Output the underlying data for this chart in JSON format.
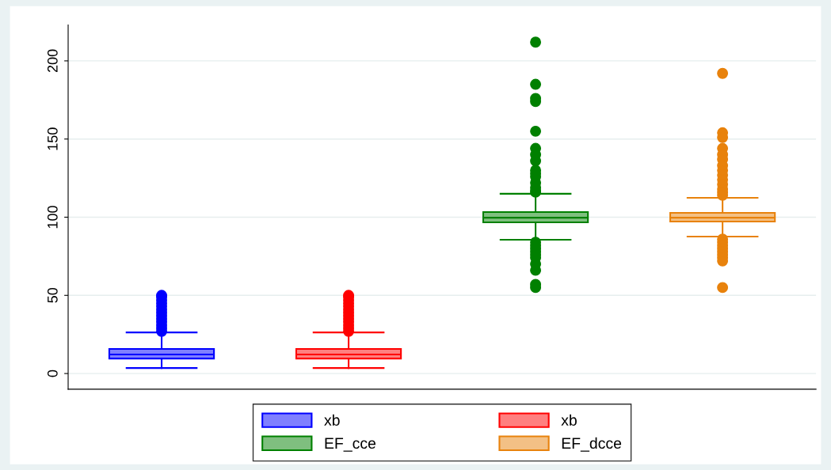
{
  "chart_data": {
    "type": "box",
    "categories": [
      null,
      null,
      null,
      null
    ],
    "series": [
      {
        "name": "xb",
        "color": "#0000ff",
        "boxes": [
          {
            "low": 3.5,
            "q1": 9.6,
            "median": 12.2,
            "q3": 15.7,
            "high": 26.3,
            "outliers": [
              27,
              29,
              31,
              33,
              35,
              37,
              39,
              41,
              43,
              45,
              47,
              49,
              50
            ]
          },
          null,
          null,
          null
        ]
      },
      {
        "name": "xb",
        "color": "#ff0000",
        "boxes": [
          null,
          {
            "low": 3.5,
            "q1": 9.6,
            "median": 12.2,
            "q3": 15.7,
            "high": 26.3,
            "outliers": [
              27,
              29,
              31,
              33,
              35,
              37,
              39,
              41,
              43,
              45,
              47,
              49,
              50
            ]
          },
          null,
          null
        ]
      },
      {
        "name": "EF_cce",
        "color": "#008000",
        "boxes": [
          null,
          null,
          {
            "low": 85.6,
            "q1": 96.7,
            "median": 99.7,
            "q3": 103.3,
            "high": 115,
            "outliers": [
              212,
              185,
              176,
              174,
              155,
              144,
              140,
              136,
              130,
              128,
              126,
              122,
              119,
              117,
              116,
              84,
              82,
              80,
              78,
              76,
              74,
              70,
              66,
              57,
              55
            ]
          },
          null
        ]
      },
      {
        "name": "EF_dcce",
        "color": "#e8820c",
        "boxes": [
          null,
          null,
          null,
          {
            "low": 87.6,
            "q1": 97.2,
            "median": 99.7,
            "q3": 102.8,
            "high": 112.4,
            "outliers": [
              192,
              154,
              151,
              144,
              140,
              137,
              133,
              130,
              127,
              124,
              121,
              118,
              116,
              114,
              86,
              84,
              82,
              80,
              78,
              76,
              74,
              72,
              55
            ]
          }
        ]
      }
    ],
    "ylim": [
      -10,
      223
    ],
    "yticks": [
      0,
      50,
      100,
      150,
      200
    ],
    "grid": "y",
    "legend": "bottom",
    "tick_labels": "y"
  }
}
